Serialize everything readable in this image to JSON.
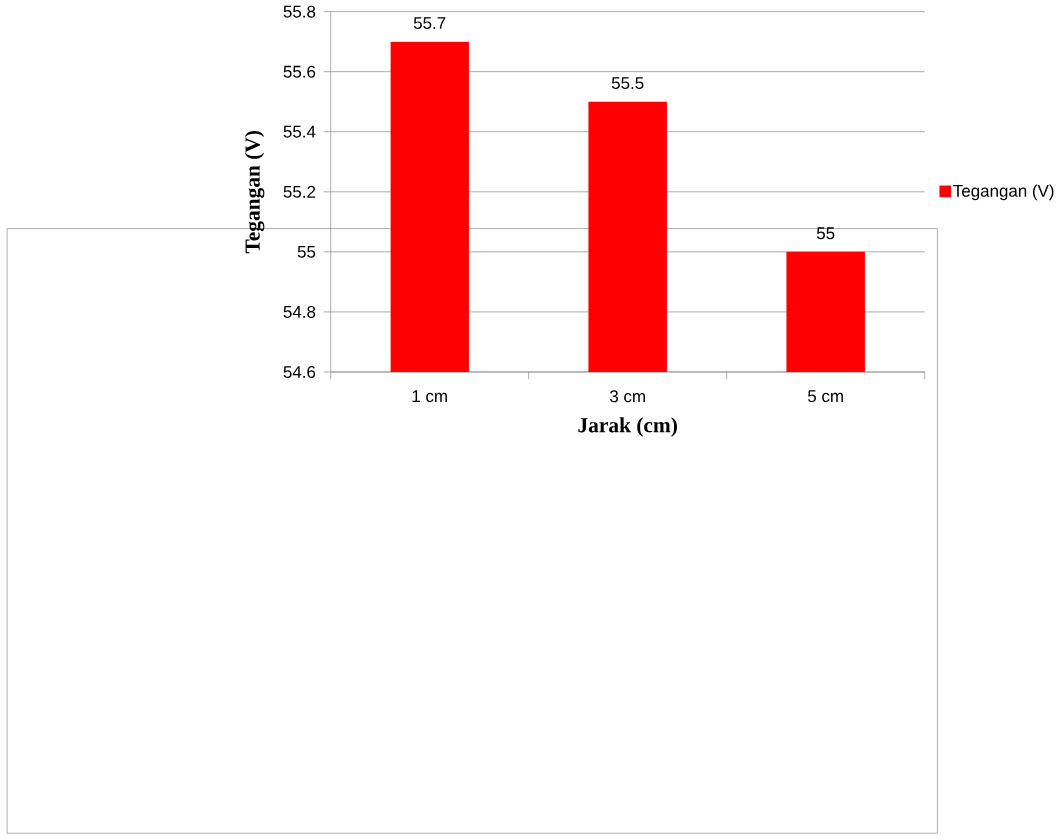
{
  "chart_data": {
    "type": "bar",
    "xlabel": "Jarak (cm)",
    "ylabel": "Tegangan (V)",
    "categories": [
      "1 cm",
      "3 cm",
      "5 cm"
    ],
    "series": [
      {
        "name": "Tegangan (V)",
        "color": "#ff0000",
        "values": [
          55.7,
          55.5,
          55
        ]
      }
    ],
    "ylim": [
      54.6,
      55.8
    ],
    "yticks": [
      54.6,
      54.8,
      55,
      55.2,
      55.4,
      55.6,
      55.8
    ],
    "grid": "y",
    "legend": "right",
    "data_labels": true
  }
}
